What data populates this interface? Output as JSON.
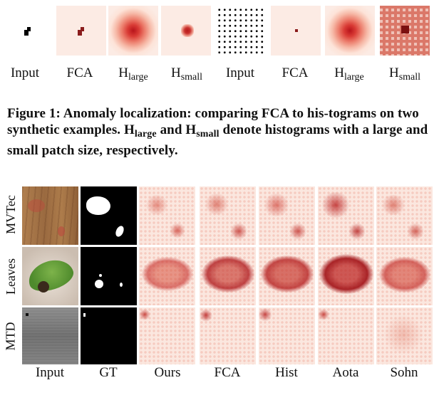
{
  "top_strip": {
    "labels": [
      {
        "main": "Input",
        "sub": ""
      },
      {
        "main": "FCA",
        "sub": ""
      },
      {
        "main": "H",
        "sub": "large"
      },
      {
        "main": "H",
        "sub": "small"
      },
      {
        "main": "Input",
        "sub": ""
      },
      {
        "main": "FCA",
        "sub": ""
      },
      {
        "main": "H",
        "sub": "large"
      },
      {
        "main": "H",
        "sub": "small"
      }
    ]
  },
  "caption": {
    "part1": "Figure 1: Anomaly localization: comparing FCA to his-tograms on two synthetic examples. H",
    "sub1": "large",
    "part2": " and H",
    "sub2": "small",
    "part3": " denote histograms with a large and small patch size, respectively."
  },
  "grid": {
    "rows": [
      "MVTec",
      "Leaves",
      "MTD"
    ],
    "columns": [
      "Input",
      "GT",
      "Ours",
      "FCA",
      "Hist",
      "Aota",
      "Sohn"
    ]
  },
  "colors": {
    "heat_dark": "#b8141b",
    "heat_light": "#fcebe4"
  }
}
